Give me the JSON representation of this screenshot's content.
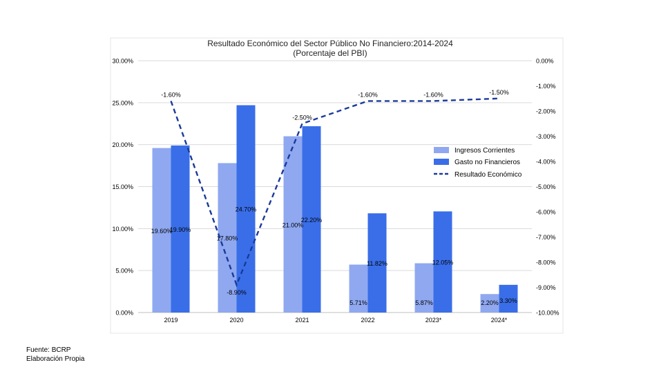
{
  "footer": {
    "source": "Fuente: BCRP",
    "author": "Elaboración Propia"
  },
  "chart_data": {
    "type": "bar",
    "title": "Resultado Económico del Sector Público No Financiero:2014-2024",
    "subtitle": "(Porcentaje del PBI)",
    "categories": [
      "2019",
      "2020",
      "2021",
      "2022",
      "2023*",
      "2024*"
    ],
    "series": [
      {
        "name": "Ingresos Corrientes",
        "type": "bar",
        "axis": "left",
        "color": "#8fa8f0",
        "values": [
          19.6,
          17.8,
          21.0,
          5.71,
          5.87,
          2.2
        ],
        "labels": [
          "19.60%",
          "17.80%",
          "21.00%",
          "5.71%",
          "5.87%",
          "2.20%"
        ]
      },
      {
        "name": "Gasto no Financieros",
        "type": "bar",
        "axis": "right_bar",
        "color": "#3a6ee8",
        "values": [
          19.9,
          24.7,
          22.2,
          11.82,
          12.05,
          3.3
        ],
        "labels": [
          "19.90%",
          "24.70%",
          "22.20%",
          "11.82%",
          "12.05%",
          "3.30%"
        ]
      },
      {
        "name": "Resultado Económico",
        "type": "line",
        "axis": "right",
        "color": "#1a3a9a",
        "dash": true,
        "values": [
          -1.6,
          -8.9,
          -2.5,
          -1.6,
          -1.6,
          -1.5
        ],
        "labels": [
          "-1.60%",
          "-8.90%",
          "-2.50%",
          "-1.60%",
          "-1.60%",
          "-1.50%"
        ]
      }
    ],
    "y_left": {
      "min": 0,
      "max": 30,
      "ticks": [
        "0.00%",
        "5.00%",
        "10.00%",
        "15.00%",
        "20.00%",
        "25.00%",
        "30.00%"
      ]
    },
    "y_right": {
      "min": -10,
      "max": 0,
      "ticks": [
        "0.00%",
        "-1.00%",
        "-2.00%",
        "-3.00%",
        "-4.00%",
        "-5.00%",
        "-6.00%",
        "-7.00%",
        "-8.00%",
        "-9.00%",
        "-10.00%"
      ]
    },
    "grid": true,
    "legend_position": "right"
  }
}
